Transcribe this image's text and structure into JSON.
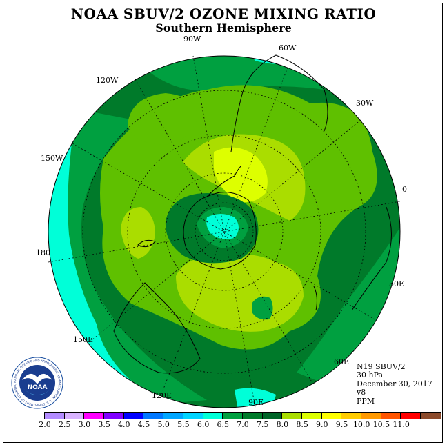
{
  "title": "NOAA SBUV/2 OZONE MIXING RATIO",
  "subtitle": "Southern Hemisphere",
  "longitude_labels": {
    "lon_90w": "90W",
    "lon_60w": "60W",
    "lon_120w": "120W",
    "lon_30w": "30W",
    "lon_150w": "150W",
    "lon_0": "0",
    "lon_180": "180",
    "lon_30e": "30E",
    "lon_150e": "150E",
    "lon_60e": "60E",
    "lon_120e": "120E",
    "lon_90e": "90E"
  },
  "info": {
    "instrument": "N19 SBUV/2",
    "level": "30 hPa",
    "date": "December 30, 2017",
    "version": "v8",
    "units": "PPM"
  },
  "logo": {
    "text": "NOAA",
    "ring_text": "NATIONAL OCEANIC AND ATMOSPHERIC ADMINISTRATION · U.S. DEPARTMENT OF COMMERCE"
  },
  "colorbar": {
    "ticks": [
      "2.0",
      "2.5",
      "3.0",
      "3.5",
      "4.0",
      "4.5",
      "5.0",
      "5.5",
      "6.0",
      "6.5",
      "7.0",
      "7.5",
      "8.0",
      "8.5",
      "9.0",
      "9.5",
      "10.0",
      "10.5",
      "11.0"
    ],
    "colors": [
      "#b38cff",
      "#d9b3ff",
      "#ff00ff",
      "#8000ff",
      "#0000ff",
      "#0077ff",
      "#00a6ff",
      "#00d4ff",
      "#00ffd8",
      "#00a040",
      "#007a2a",
      "#006428",
      "#aadd00",
      "#ddff00",
      "#ffff00",
      "#ffcc00",
      "#ff9900",
      "#ff5500",
      "#ff0000",
      "#8b4a2b"
    ]
  },
  "map_colors": {
    "c_5_5_6_0": "#00ffd8",
    "c_6_0_6_5": "#00a040",
    "c_6_5_7_0": "#007a2a",
    "c_7_0_7_5": "#5fc000",
    "c_7_5_8_0": "#aadd00",
    "c_8_0_8_5": "#ddff00"
  }
}
